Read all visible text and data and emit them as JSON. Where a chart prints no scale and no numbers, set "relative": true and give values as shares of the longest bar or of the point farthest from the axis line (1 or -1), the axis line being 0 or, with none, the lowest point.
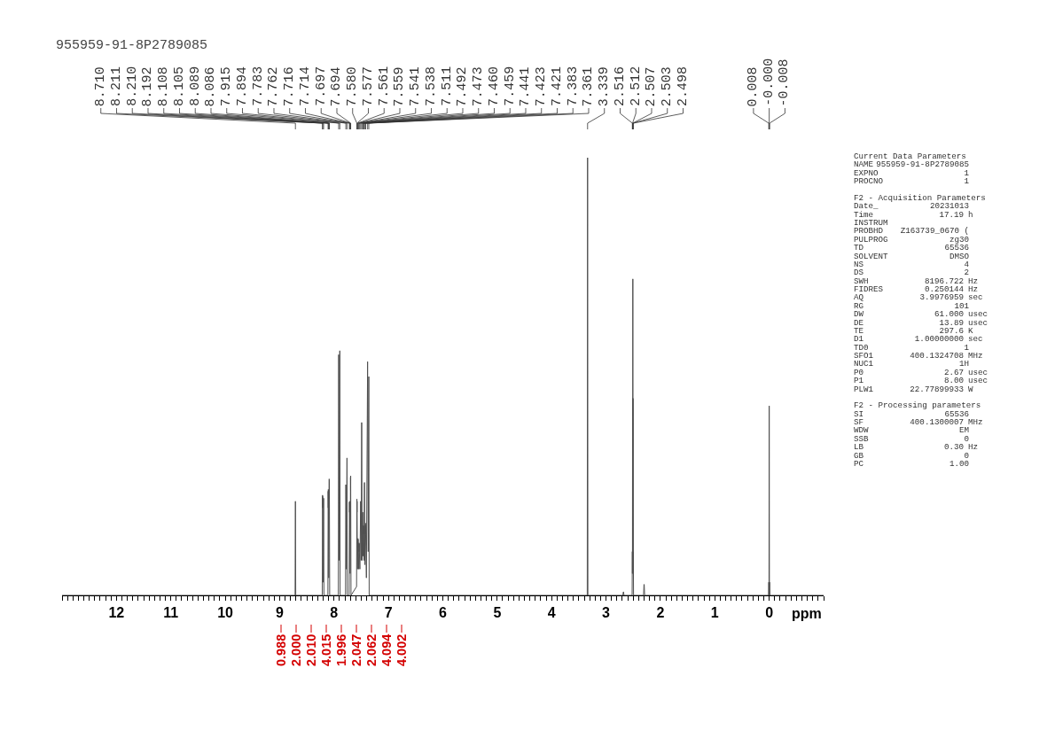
{
  "chart_data": {
    "type": "line",
    "title": "955959-91-8P2789085",
    "xlabel": "ppm",
    "relative": true,
    "color": "#4f4f4f",
    "xlim": [
      13,
      -1
    ],
    "xticks": [
      {
        "value": 13,
        "label": null
      },
      {
        "value": 12.9,
        "label": null
      },
      {
        "value": 12.8,
        "label": null
      },
      {
        "value": 12.7,
        "label": null
      },
      {
        "value": 12.6,
        "label": null
      },
      {
        "value": 12.5,
        "label": null
      },
      {
        "value": 12.4,
        "label": null
      },
      {
        "value": 12.3,
        "label": null
      },
      {
        "value": 12.2,
        "label": null
      },
      {
        "value": 12.1,
        "label": null
      },
      12,
      {
        "value": 11.9,
        "label": null
      },
      {
        "value": 11.8,
        "label": null
      },
      {
        "value": 11.7,
        "label": null
      },
      {
        "value": 11.6,
        "label": null
      },
      {
        "value": 11.5,
        "label": null
      },
      {
        "value": 11.4,
        "label": null
      },
      {
        "value": 11.3,
        "label": null
      },
      {
        "value": 11.2,
        "label": null
      },
      {
        "value": 11.1,
        "label": null
      },
      11,
      {
        "value": 10.9,
        "label": null
      },
      {
        "value": 10.8,
        "label": null
      },
      {
        "value": 10.7,
        "label": null
      },
      {
        "value": 10.6,
        "label": null
      },
      {
        "value": 10.5,
        "label": null
      },
      {
        "value": 10.4,
        "label": null
      },
      {
        "value": 10.3,
        "label": null
      },
      {
        "value": 10.2,
        "label": null
      },
      {
        "value": 10.1,
        "label": null
      },
      10,
      {
        "value": 9.9,
        "label": null
      },
      {
        "value": 9.8,
        "label": null
      },
      {
        "value": 9.7,
        "label": null
      },
      {
        "value": 9.6,
        "label": null
      },
      {
        "value": 9.5,
        "label": null
      },
      {
        "value": 9.4,
        "label": null
      },
      {
        "value": 9.3,
        "label": null
      },
      {
        "value": 9.2,
        "label": null
      },
      {
        "value": 9.1,
        "label": null
      },
      9,
      {
        "value": 8.9,
        "label": null
      },
      {
        "value": 8.8,
        "label": null
      },
      {
        "value": 8.7,
        "label": null
      },
      {
        "value": 8.6,
        "label": null
      },
      {
        "value": 8.5,
        "label": null
      },
      {
        "value": 8.4,
        "label": null
      },
      {
        "value": 8.3,
        "label": null
      },
      {
        "value": 8.2,
        "label": null
      },
      {
        "value": 8.1,
        "label": null
      },
      8,
      {
        "value": 7.9,
        "label": null
      },
      {
        "value": 7.8,
        "label": null
      },
      {
        "value": 7.7,
        "label": null
      },
      {
        "value": 7.6,
        "label": null
      },
      {
        "value": 7.5,
        "label": null
      },
      {
        "value": 7.4,
        "label": null
      },
      {
        "value": 7.3,
        "label": null
      },
      {
        "value": 7.2,
        "label": null
      },
      {
        "value": 7.1,
        "label": null
      },
      7,
      {
        "value": 6.9,
        "label": null
      },
      {
        "value": 6.8,
        "label": null
      },
      {
        "value": 6.7,
        "label": null
      },
      {
        "value": 6.6,
        "label": null
      },
      {
        "value": 6.5,
        "label": null
      },
      {
        "value": 6.4,
        "label": null
      },
      {
        "value": 6.3,
        "label": null
      },
      {
        "value": 6.2,
        "label": null
      },
      {
        "value": 6.1,
        "label": null
      },
      6,
      {
        "value": 5.9,
        "label": null
      },
      {
        "value": 5.8,
        "label": null
      },
      {
        "value": 5.7,
        "label": null
      },
      {
        "value": 5.6,
        "label": null
      },
      {
        "value": 5.5,
        "label": null
      },
      {
        "value": 5.4,
        "label": null
      },
      {
        "value": 5.3,
        "label": null
      },
      {
        "value": 5.2,
        "label": null
      },
      {
        "value": 5.1,
        "label": null
      },
      5,
      {
        "value": 4.9,
        "label": null
      },
      {
        "value": 4.8,
        "label": null
      },
      {
        "value": 4.7,
        "label": null
      },
      {
        "value": 4.6,
        "label": null
      },
      {
        "value": 4.5,
        "label": null
      },
      {
        "value": 4.4,
        "label": null
      },
      {
        "value": 4.3,
        "label": null
      },
      {
        "value": 4.2,
        "label": null
      },
      {
        "value": 4.1,
        "label": null
      },
      4,
      {
        "value": 3.9,
        "label": null
      },
      {
        "value": 3.8,
        "label": null
      },
      {
        "value": 3.7,
        "label": null
      },
      {
        "value": 3.6,
        "label": null
      },
      {
        "value": 3.5,
        "label": null
      },
      {
        "value": 3.4,
        "label": null
      },
      {
        "value": 3.3,
        "label": null
      },
      {
        "value": 3.2,
        "label": null
      },
      {
        "value": 3.1,
        "label": null
      },
      3,
      {
        "value": 2.9,
        "label": null
      },
      {
        "value": 2.8,
        "label": null
      },
      {
        "value": 2.7,
        "label": null
      },
      {
        "value": 2.6,
        "label": null
      },
      {
        "value": 2.5,
        "label": null
      },
      {
        "value": 2.4,
        "label": null
      },
      {
        "value": 2.3,
        "label": null
      },
      {
        "value": 2.2,
        "label": null
      },
      {
        "value": 2.1,
        "label": null
      },
      2,
      {
        "value": 1.9,
        "label": null
      },
      {
        "value": 1.8,
        "label": null
      },
      {
        "value": 1.7,
        "label": null
      },
      {
        "value": 1.6,
        "label": null
      },
      {
        "value": 1.5,
        "label": null
      },
      {
        "value": 1.4,
        "label": null
      },
      {
        "value": 1.3,
        "label": null
      },
      {
        "value": 1.2,
        "label": null
      },
      {
        "value": 1.1,
        "label": null
      },
      1,
      {
        "value": 0.9,
        "label": null
      },
      {
        "value": 0.8,
        "label": null
      },
      {
        "value": 0.7,
        "label": null
      },
      {
        "value": 0.6,
        "label": null
      },
      {
        "value": 0.5,
        "label": null
      },
      {
        "value": 0.4,
        "label": null
      },
      {
        "value": 0.3,
        "label": null
      },
      {
        "value": 0.2,
        "label": null
      },
      {
        "value": 0.1,
        "label": null
      },
      0,
      {
        "value": -0.1,
        "label": null
      },
      {
        "value": -0.2,
        "label": null
      },
      {
        "value": -0.3,
        "label": null
      },
      {
        "value": -0.4,
        "label": null
      },
      {
        "value": -0.5,
        "label": null
      },
      {
        "value": -0.6,
        "label": null
      },
      {
        "value": -0.7,
        "label": null
      },
      {
        "value": -0.8,
        "label": null
      },
      {
        "value": -0.9,
        "label": null
      },
      {
        "value": -1,
        "label": null
      }
    ],
    "x": [
      13,
      8.716,
      8.71,
      8.704,
      8.216,
      8.211,
      8.2105,
      8.21,
      8.201,
      8.192,
      8.186,
      8.113,
      8.108,
      8.1065,
      8.105,
      8.097,
      8.089,
      8.0875,
      8.086,
      8.08,
      7.921,
      7.915,
      7.905,
      7.894,
      7.888,
      7.789,
      7.783,
      7.773,
      7.762,
      7.756,
      7.722,
      7.716,
      7.715,
      7.714,
      7.705,
      7.697,
      7.6955,
      7.694,
      7.688,
      7.586,
      7.58,
      7.5785,
      7.577,
      7.57,
      7.561,
      7.56,
      7.559,
      7.55,
      7.541,
      7.5395,
      7.538,
      7.525,
      7.511,
      7.502,
      7.492,
      7.483,
      7.473,
      7.466,
      7.46,
      7.4595,
      7.459,
      7.45,
      7.441,
      7.432,
      7.423,
      7.422,
      7.421,
      7.405,
      7.383,
      7.372,
      7.361,
      7.354,
      3.345,
      3.339,
      3.333,
      2.69,
      2.682,
      2.678,
      2.67,
      2.52,
      2.516,
      2.514,
      2.512,
      2.509,
      2.507,
      2.505,
      2.503,
      2.5,
      2.498,
      2.494,
      2.31,
      2.302,
      2.298,
      2.29,
      0.012,
      0.008,
      0.004,
      0,
      -0.004,
      -0.008,
      -0.012,
      -1
    ],
    "values": [
      0,
      0,
      0.215,
      0,
      0,
      0.229,
      0.2,
      0.226,
      0.03,
      0.222,
      0,
      0,
      0.238,
      0.2,
      0.242,
      0.04,
      0.266,
      0.22,
      0.26,
      0,
      0,
      0.55,
      0.08,
      0.559,
      0,
      0,
      0.253,
      0.06,
      0.314,
      0,
      0,
      0.213,
      0.19,
      0.215,
      0.05,
      0.27,
      0.24,
      0.273,
      0,
      0.02,
      0.22,
      0.19,
      0.215,
      0.06,
      0.13,
      0.11,
      0.128,
      0.06,
      0.12,
      0.1,
      0.118,
      0.06,
      0.215,
      0.08,
      0.395,
      0.08,
      0.19,
      0.09,
      0.16,
      0.14,
      0.158,
      0.08,
      0.258,
      0.07,
      0.165,
      0.14,
      0.16,
      0.04,
      0.534,
      0.1,
      0.5,
      0,
      0,
      1,
      0,
      0,
      0.008,
      0.008,
      0,
      0,
      0.1,
      0.05,
      0.45,
      0.1,
      0.723,
      0.1,
      0.45,
      0.05,
      0.1,
      0,
      0,
      0.025,
      0.025,
      0,
      0,
      0.03,
      0,
      0.433,
      0,
      0.03,
      0,
      0
    ],
    "annotations": [
      "8.710",
      "8.211",
      "8.210",
      "8.192",
      "8.108",
      "8.105",
      "8.089",
      "8.086",
      "7.915",
      "7.894",
      "7.783",
      "7.762",
      "7.716",
      "7.714",
      "7.697",
      "7.694",
      "7.580",
      "7.577",
      "7.561",
      "7.559",
      "7.541",
      "7.538",
      "7.511",
      "7.492",
      "7.473",
      "7.460",
      "7.459",
      "7.441",
      "7.423",
      "7.421",
      "7.383",
      "7.361",
      "3.339",
      "2.516",
      "2.512",
      "2.507",
      "2.503",
      "2.498",
      "0.008",
      "-0.000",
      "-0.008",
      "Current Data Parameters",
      "NAME  955959-91-8P2789085",
      "EXPNO  1",
      "PROCNO  1",
      "F2 - Acquisition Parameters",
      "Date_  20231013",
      "Time  17.19 h",
      "INSTRUM",
      "PROBHD  Z163739_0670 (",
      "PULPROG  zg30",
      "TD  65536",
      "SOLVENT  DMSO",
      "NS  4",
      "DS  2",
      "SWH  8196.722 Hz",
      "FIDRES  0.250144 Hz",
      "AQ  3.9976959 sec",
      "RG  101",
      "DW  61.000 usec",
      "DE  13.89 usec",
      "TE  297.6 K",
      "D1  1.00000000 sec",
      "TD0  1",
      "SFO1  400.1324708 MHz",
      "NUC1  1H",
      "P0  2.67 usec",
      "P1  8.00 usec",
      "PLW1  22.77899933 W",
      "F2 - Processing parameters",
      "SI  65536",
      "SF  400.1300007 MHz",
      "WDW  EM",
      "SSB  0",
      "LB  0.30 Hz",
      "GB  0",
      "PC  1.00",
      "0.988",
      "2.000",
      "2.010",
      "4.015",
      "1.996",
      "2.047",
      "2.062",
      "4.094",
      "4.002"
    ]
  }
}
